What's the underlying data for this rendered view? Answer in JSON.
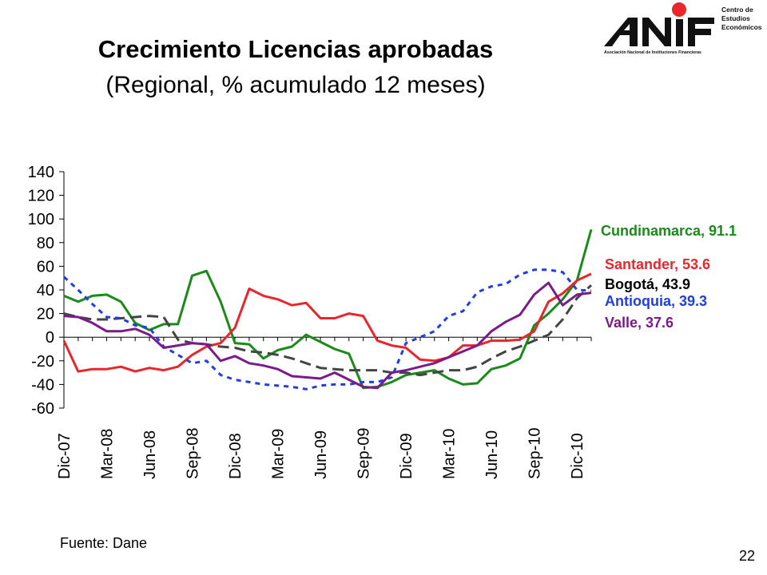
{
  "slide": {
    "title": "Crecimiento Licencias aprobadas",
    "subtitle": "(Regional, % acumulado 12 meses)",
    "source": "Fuente: Dane",
    "page_number": "22"
  },
  "logo": {
    "brand": "ANIF",
    "tagline": "Asociación Nacional de Instituciones Financieras",
    "side_text": [
      "Centro de",
      "Estudios",
      "Económicos"
    ],
    "dot_color": "#e8262b"
  },
  "chart_data": {
    "type": "line",
    "title": "",
    "xlabel": "",
    "ylabel": "",
    "ylim": [
      -60,
      140
    ],
    "yticks": [
      140,
      120,
      100,
      80,
      60,
      40,
      20,
      0,
      -20,
      -40,
      -60
    ],
    "x_tick_labels": [
      "Dic-07",
      "Mar-08",
      "Jun-08",
      "Sep-08",
      "Dic-08",
      "Mar-09",
      "Jun-09",
      "Sep-09",
      "Dic-09",
      "Mar-10",
      "Jun-10",
      "Sep-10",
      "Dic-10"
    ],
    "x_tick_step": 3,
    "series": [
      {
        "name": "Cundinamarca",
        "label": "Cundinamarca, 91.1",
        "color": "#1a8a1a",
        "style": "solid",
        "values": [
          35,
          30,
          35,
          36,
          30,
          12,
          6,
          11,
          11,
          52,
          56,
          30,
          -5,
          -6,
          -18,
          -11,
          -8,
          2,
          -4,
          -10,
          -14,
          -43,
          -42,
          -38,
          -32,
          -30,
          -28,
          -35,
          -40,
          -39,
          -27,
          -24,
          -18,
          10,
          20,
          32,
          48,
          91.1
        ]
      },
      {
        "name": "Santander",
        "label": "Santander, 53.6",
        "color": "#e8262b",
        "style": "solid",
        "values": [
          -3,
          -29,
          -27,
          -27,
          -25,
          -29,
          -26,
          -28,
          -25,
          -15,
          -8,
          -5,
          8,
          41,
          35,
          32,
          27,
          29,
          16,
          16,
          20,
          18,
          -3,
          -7,
          -9,
          -19,
          -20,
          -17,
          -7,
          -7,
          -3,
          -3,
          -2,
          5,
          30,
          37,
          48,
          53.6
        ]
      },
      {
        "name": "Bogotá",
        "label": "Bogotá, 43.9",
        "color": "#444444",
        "style": "dashed",
        "values": [
          20,
          17,
          15,
          15,
          16,
          17,
          18,
          17,
          -2,
          -5,
          -6,
          -8,
          -9,
          -12,
          -13,
          -15,
          -18,
          -22,
          -26,
          -27,
          -28,
          -28,
          -28,
          -30,
          -30,
          -32,
          -30,
          -28,
          -28,
          -25,
          -18,
          -12,
          -8,
          -3,
          2,
          15,
          33,
          43.9
        ]
      },
      {
        "name": "Antioquia",
        "label": "Antioquia, 39.3",
        "color": "#1f3fe0",
        "style": "dotted",
        "values": [
          51,
          40,
          28,
          17,
          16,
          10,
          8,
          -8,
          -15,
          -22,
          -20,
          -32,
          -36,
          -38,
          -40,
          -41,
          -42,
          -44,
          -41,
          -40,
          -40,
          -38,
          -38,
          -34,
          -5,
          0,
          5,
          18,
          22,
          38,
          43,
          45,
          53,
          57,
          57,
          55,
          40,
          39.3
        ]
      },
      {
        "name": "Valle",
        "label": "Valle, 37.6",
        "color": "#7a1a8c",
        "style": "solid",
        "values": [
          18,
          17,
          12,
          5,
          5,
          7,
          2,
          -9,
          -7,
          -5,
          -6,
          -20,
          -16,
          -22,
          -24,
          -27,
          -33,
          -34,
          -35,
          -30,
          -36,
          -42,
          -43,
          -30,
          -28,
          -25,
          -22,
          -17,
          -12,
          -7,
          5,
          13,
          19,
          36,
          46,
          27,
          36,
          37.6
        ]
      }
    ]
  }
}
